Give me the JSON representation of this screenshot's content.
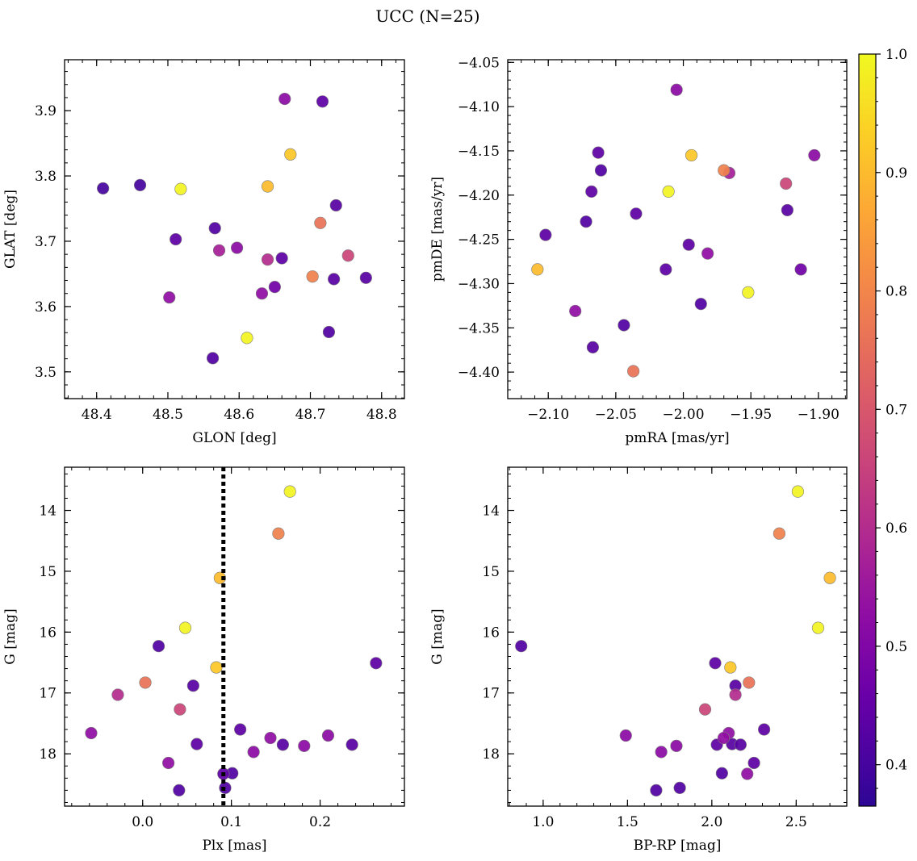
{
  "figure": {
    "title": "UCC (N=25)"
  },
  "colorbar": {
    "colormap": "plasma",
    "vmin": 0.365,
    "vmax": 1.0,
    "ticks": [
      0.4,
      0.5,
      0.6,
      0.7,
      0.8,
      0.9,
      1.0
    ],
    "tick_labels": [
      "0.4",
      "0.5",
      "0.6",
      "0.7",
      "0.8",
      "0.9",
      "1.0"
    ]
  },
  "colors": {
    "vline": "#000000",
    "marker_edge": "#7f7f7f"
  },
  "chart_data": [
    {
      "id": "glon-glat",
      "type": "scatter",
      "xlabel": "GLON [deg]",
      "ylabel": "GLAT [deg]",
      "xlim": [
        48.355,
        48.832
      ],
      "ylim": [
        3.459,
        3.978
      ],
      "y_inverted": false,
      "xticks": [
        48.4,
        48.5,
        48.6,
        48.7,
        48.8
      ],
      "xtick_labels": [
        "48.4",
        "48.5",
        "48.6",
        "48.7",
        "48.8"
      ],
      "yticks": [
        3.5,
        3.6,
        3.7,
        3.8,
        3.9
      ],
      "ytick_labels": [
        "3.5",
        "3.6",
        "3.7",
        "3.8",
        "3.9"
      ],
      "points": [
        {
          "x": 48.664,
          "y": 3.918,
          "c": 0.52
        },
        {
          "x": 48.717,
          "y": 3.914,
          "c": 0.44
        },
        {
          "x": 48.672,
          "y": 3.833,
          "c": 0.92
        },
        {
          "x": 48.409,
          "y": 3.781,
          "c": 0.4
        },
        {
          "x": 48.461,
          "y": 3.786,
          "c": 0.4
        },
        {
          "x": 48.518,
          "y": 3.78,
          "c": 0.99
        },
        {
          "x": 48.64,
          "y": 3.784,
          "c": 0.9
        },
        {
          "x": 48.736,
          "y": 3.755,
          "c": 0.43
        },
        {
          "x": 48.714,
          "y": 3.728,
          "c": 0.76
        },
        {
          "x": 48.511,
          "y": 3.703,
          "c": 0.44
        },
        {
          "x": 48.566,
          "y": 3.72,
          "c": 0.42
        },
        {
          "x": 48.572,
          "y": 3.686,
          "c": 0.57
        },
        {
          "x": 48.597,
          "y": 3.69,
          "c": 0.52
        },
        {
          "x": 48.64,
          "y": 3.672,
          "c": 0.6
        },
        {
          "x": 48.66,
          "y": 3.674,
          "c": 0.44
        },
        {
          "x": 48.753,
          "y": 3.678,
          "c": 0.66
        },
        {
          "x": 48.502,
          "y": 3.614,
          "c": 0.53
        },
        {
          "x": 48.632,
          "y": 3.62,
          "c": 0.53
        },
        {
          "x": 48.65,
          "y": 3.63,
          "c": 0.47
        },
        {
          "x": 48.703,
          "y": 3.646,
          "c": 0.79
        },
        {
          "x": 48.733,
          "y": 3.642,
          "c": 0.43
        },
        {
          "x": 48.778,
          "y": 3.644,
          "c": 0.43
        },
        {
          "x": 48.611,
          "y": 3.552,
          "c": 0.99
        },
        {
          "x": 48.726,
          "y": 3.561,
          "c": 0.42
        },
        {
          "x": 48.563,
          "y": 3.521,
          "c": 0.42
        }
      ]
    },
    {
      "id": "pmra-pmde",
      "type": "scatter",
      "xlabel": "pmRA [mas/yr]",
      "ylabel": "pmDE [mas/yr]",
      "xlim": [
        -2.13,
        -1.879
      ],
      "ylim": [
        -4.43,
        -4.047
      ],
      "y_inverted": false,
      "xticks": [
        -2.1,
        -2.05,
        -2.0,
        -1.95,
        -1.9
      ],
      "xtick_labels": [
        "−2.10",
        "−2.05",
        "−2.00",
        "−1.95",
        "−1.90"
      ],
      "yticks": [
        -4.4,
        -4.35,
        -4.3,
        -4.25,
        -4.2,
        -4.15,
        -4.1,
        -4.05
      ],
      "ytick_labels": [
        "−4.40",
        "−4.35",
        "−4.30",
        "−4.25",
        "−4.20",
        "−4.15",
        "−4.10",
        "−4.05"
      ],
      "points": [
        {
          "x": -2.005,
          "y": -4.081,
          "c": 0.52
        },
        {
          "x": -2.063,
          "y": -4.152,
          "c": 0.44
        },
        {
          "x": -1.994,
          "y": -4.155,
          "c": 0.92
        },
        {
          "x": -1.903,
          "y": -4.155,
          "c": 0.52
        },
        {
          "x": -2.061,
          "y": -4.172,
          "c": 0.42
        },
        {
          "x": -1.97,
          "y": -4.172,
          "c": 0.79
        },
        {
          "x": -1.966,
          "y": -4.175,
          "c": 0.57
        },
        {
          "x": -1.924,
          "y": -4.187,
          "c": 0.66
        },
        {
          "x": -2.068,
          "y": -4.196,
          "c": 0.44
        },
        {
          "x": -2.011,
          "y": -4.196,
          "c": 0.99
        },
        {
          "x": -2.035,
          "y": -4.221,
          "c": 0.44
        },
        {
          "x": -1.923,
          "y": -4.217,
          "c": 0.43
        },
        {
          "x": -2.072,
          "y": -4.23,
          "c": 0.42
        },
        {
          "x": -2.102,
          "y": -4.245,
          "c": 0.44
        },
        {
          "x": -1.996,
          "y": -4.256,
          "c": 0.44
        },
        {
          "x": -1.982,
          "y": -4.266,
          "c": 0.53
        },
        {
          "x": -2.108,
          "y": -4.284,
          "c": 0.9
        },
        {
          "x": -2.013,
          "y": -4.284,
          "c": 0.44
        },
        {
          "x": -1.913,
          "y": -4.284,
          "c": 0.47
        },
        {
          "x": -1.952,
          "y": -4.31,
          "c": 0.99
        },
        {
          "x": -1.987,
          "y": -4.323,
          "c": 0.42
        },
        {
          "x": -2.08,
          "y": -4.331,
          "c": 0.53
        },
        {
          "x": -2.044,
          "y": -4.347,
          "c": 0.42
        },
        {
          "x": -2.067,
          "y": -4.372,
          "c": 0.43
        },
        {
          "x": -2.037,
          "y": -4.399,
          "c": 0.76
        }
      ]
    },
    {
      "id": "plx-g",
      "type": "scatter",
      "xlabel": "Plx [mas]",
      "ylabel": "G [mag]",
      "xlim": [
        -0.088,
        0.295
      ],
      "ylim": [
        18.86,
        13.29
      ],
      "y_inverted": true,
      "xticks": [
        0.0,
        0.1,
        0.2
      ],
      "xtick_labels": [
        "0.0",
        "0.1",
        "0.2"
      ],
      "yticks": [
        14,
        15,
        16,
        17,
        18
      ],
      "ytick_labels": [
        "14",
        "15",
        "16",
        "17",
        "18"
      ],
      "vline": {
        "x": 0.091,
        "style": "dotted"
      },
      "points": [
        {
          "x": 0.166,
          "y": 13.69,
          "c": 0.99
        },
        {
          "x": 0.153,
          "y": 14.38,
          "c": 0.79
        },
        {
          "x": 0.087,
          "y": 15.11,
          "c": 0.9
        },
        {
          "x": 0.048,
          "y": 15.93,
          "c": 0.99
        },
        {
          "x": 0.018,
          "y": 16.23,
          "c": 0.42
        },
        {
          "x": 0.263,
          "y": 16.51,
          "c": 0.44
        },
        {
          "x": 0.083,
          "y": 16.58,
          "c": 0.92
        },
        {
          "x": 0.003,
          "y": 16.83,
          "c": 0.76
        },
        {
          "x": 0.057,
          "y": 16.88,
          "c": 0.43
        },
        {
          "x": -0.028,
          "y": 17.03,
          "c": 0.6
        },
        {
          "x": 0.042,
          "y": 17.27,
          "c": 0.66
        },
        {
          "x": -0.058,
          "y": 17.66,
          "c": 0.53
        },
        {
          "x": 0.11,
          "y": 17.6,
          "c": 0.44
        },
        {
          "x": 0.209,
          "y": 17.7,
          "c": 0.52
        },
        {
          "x": 0.144,
          "y": 17.74,
          "c": 0.53
        },
        {
          "x": 0.061,
          "y": 17.84,
          "c": 0.44
        },
        {
          "x": 0.158,
          "y": 17.85,
          "c": 0.43
        },
        {
          "x": 0.182,
          "y": 17.87,
          "c": 0.52
        },
        {
          "x": 0.236,
          "y": 17.85,
          "c": 0.43
        },
        {
          "x": 0.125,
          "y": 17.97,
          "c": 0.52
        },
        {
          "x": 0.029,
          "y": 18.15,
          "c": 0.53
        },
        {
          "x": 0.091,
          "y": 18.33,
          "c": 0.44
        },
        {
          "x": 0.101,
          "y": 18.32,
          "c": 0.42
        },
        {
          "x": 0.041,
          "y": 18.6,
          "c": 0.42
        },
        {
          "x": 0.093,
          "y": 18.56,
          "c": 0.42
        }
      ]
    },
    {
      "id": "bprp-g",
      "type": "scatter",
      "xlabel": "BP-RP [mag]",
      "ylabel": "G [mag]",
      "xlim": [
        0.79,
        2.8
      ],
      "ylim": [
        18.86,
        13.29
      ],
      "y_inverted": true,
      "xticks": [
        1.0,
        1.5,
        2.0,
        2.5
      ],
      "xtick_labels": [
        "1.0",
        "1.5",
        "2.0",
        "2.5"
      ],
      "yticks": [
        14,
        15,
        16,
        17,
        18
      ],
      "ytick_labels": [
        "14",
        "15",
        "16",
        "17",
        "18"
      ],
      "points": [
        {
          "x": 2.51,
          "y": 13.69,
          "c": 0.99
        },
        {
          "x": 2.4,
          "y": 14.38,
          "c": 0.79
        },
        {
          "x": 2.7,
          "y": 15.11,
          "c": 0.9
        },
        {
          "x": 2.63,
          "y": 15.93,
          "c": 0.99
        },
        {
          "x": 0.87,
          "y": 16.23,
          "c": 0.42
        },
        {
          "x": 2.02,
          "y": 16.51,
          "c": 0.44
        },
        {
          "x": 2.11,
          "y": 16.58,
          "c": 0.92
        },
        {
          "x": 2.22,
          "y": 16.83,
          "c": 0.76
        },
        {
          "x": 2.14,
          "y": 16.88,
          "c": 0.43
        },
        {
          "x": 2.14,
          "y": 17.03,
          "c": 0.6
        },
        {
          "x": 1.96,
          "y": 17.27,
          "c": 0.66
        },
        {
          "x": 1.49,
          "y": 17.7,
          "c": 0.52
        },
        {
          "x": 2.31,
          "y": 17.6,
          "c": 0.44
        },
        {
          "x": 2.1,
          "y": 17.66,
          "c": 0.53
        },
        {
          "x": 2.07,
          "y": 17.74,
          "c": 0.53
        },
        {
          "x": 2.03,
          "y": 17.85,
          "c": 0.44
        },
        {
          "x": 2.12,
          "y": 17.84,
          "c": 0.43
        },
        {
          "x": 2.17,
          "y": 17.85,
          "c": 0.43
        },
        {
          "x": 1.79,
          "y": 17.87,
          "c": 0.52
        },
        {
          "x": 1.7,
          "y": 17.97,
          "c": 0.52
        },
        {
          "x": 2.25,
          "y": 18.15,
          "c": 0.44
        },
        {
          "x": 2.06,
          "y": 18.32,
          "c": 0.42
        },
        {
          "x": 2.21,
          "y": 18.33,
          "c": 0.53
        },
        {
          "x": 1.67,
          "y": 18.6,
          "c": 0.42
        },
        {
          "x": 1.81,
          "y": 18.56,
          "c": 0.42
        }
      ]
    }
  ]
}
